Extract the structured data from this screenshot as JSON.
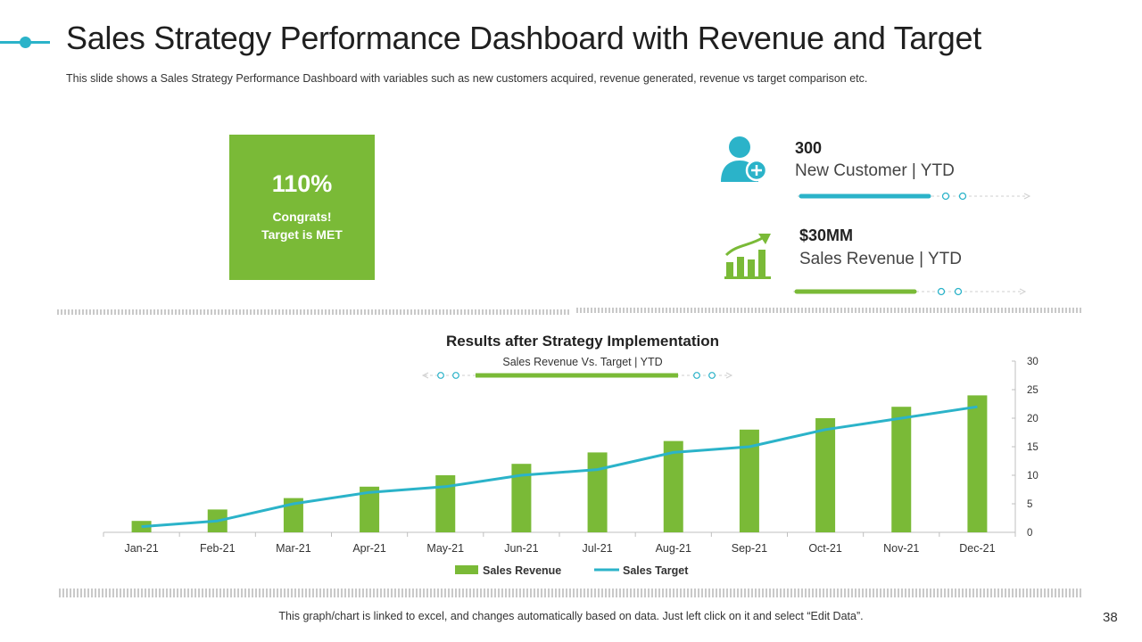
{
  "header": {
    "title": "Sales Strategy Performance Dashboard with Revenue and Target",
    "subtitle": "This slide shows a Sales Strategy Performance Dashboard with variables such as new customers acquired, revenue generated, revenue vs target comparison etc."
  },
  "kpi": {
    "percent": "110%",
    "line1": "Congrats!",
    "line2": "Target is MET"
  },
  "metrics": [
    {
      "value": "300",
      "label": "New Customer | YTD",
      "icon": "user-add-icon",
      "progress": 0.65
    },
    {
      "value": "$30MM",
      "label": "Sales Revenue | YTD",
      "icon": "growth-chart-icon",
      "progress": 0.6
    }
  ],
  "colors": {
    "accent": "#2bb3c9",
    "green": "#7aba37"
  },
  "chart_data": {
    "type": "bar",
    "title": "Results after Strategy Implementation",
    "subtitle": "Sales Revenue Vs. Target | YTD",
    "categories": [
      "Jan-21",
      "Feb-21",
      "Mar-21",
      "Apr-21",
      "May-21",
      "Jun-21",
      "Jul-21",
      "Aug-21",
      "Sep-21",
      "Oct-21",
      "Nov-21",
      "Dec-21"
    ],
    "series": [
      {
        "name": "Sales Revenue",
        "type": "bar",
        "color": "#7aba37",
        "values": [
          2,
          4,
          6,
          8,
          10,
          12,
          14,
          16,
          18,
          20,
          22,
          24
        ]
      },
      {
        "name": "Sales Target",
        "type": "line",
        "color": "#2bb3c9",
        "values": [
          1,
          2,
          5,
          7,
          8,
          10,
          11,
          14,
          15,
          18,
          20,
          22
        ]
      }
    ],
    "yaxis_side": "right",
    "ylim": [
      0,
      30
    ],
    "yticks": [
      "0",
      "5",
      "10",
      "15",
      "20",
      "25",
      "30"
    ],
    "legend_position": "bottom"
  },
  "footer": {
    "note": "This graph/chart is linked to excel, and changes automatically based on data. Just left click on it and select “Edit Data”.",
    "page": "38"
  }
}
